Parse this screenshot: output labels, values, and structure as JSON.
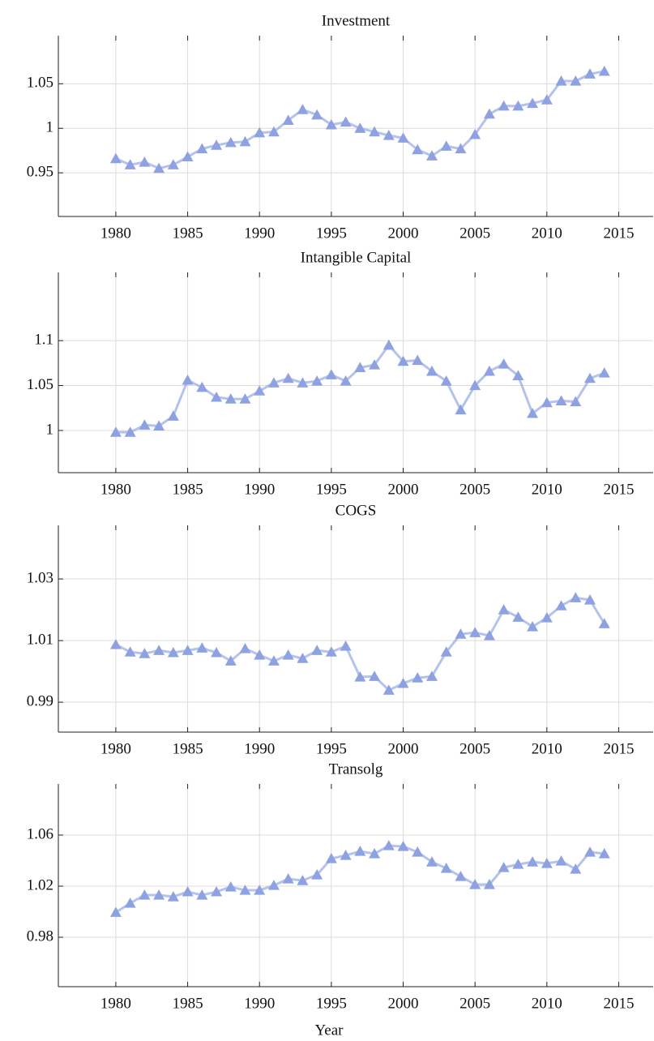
{
  "chart_data": [
    {
      "type": "line",
      "title": "Investment",
      "color": "#8ea2e2",
      "marker": "triangle",
      "grid": true,
      "x": [
        1980,
        1981,
        1982,
        1983,
        1984,
        1985,
        1986,
        1987,
        1988,
        1989,
        1990,
        1991,
        1992,
        1993,
        1994,
        1995,
        1996,
        1997,
        1998,
        1999,
        2000,
        2001,
        2002,
        2003,
        2004,
        2005,
        2006,
        2007,
        2008,
        2009,
        2010,
        2011,
        2012,
        2013,
        2014
      ],
      "values": [
        0.966,
        0.959,
        0.962,
        0.955,
        0.959,
        0.968,
        0.977,
        0.981,
        0.984,
        0.985,
        0.995,
        0.996,
        1.009,
        1.021,
        1.015,
        1.004,
        1.007,
        1.0,
        0.996,
        0.992,
        0.989,
        0.976,
        0.969,
        0.98,
        0.977,
        0.993,
        1.016,
        1.025,
        1.025,
        1.028,
        1.032,
        1.053,
        1.053,
        1.061,
        1.064
      ],
      "xlim": [
        1976,
        2017.4
      ],
      "xticks": [
        1980,
        1985,
        1990,
        1995,
        2000,
        2005,
        2010,
        2015
      ],
      "ylim": [
        0.901,
        1.104
      ],
      "yticks": [
        0.95,
        1,
        1.05
      ]
    },
    {
      "type": "line",
      "title": "Intangible Capital",
      "color": "#8ea2e2",
      "marker": "triangle",
      "grid": true,
      "x": [
        1980,
        1981,
        1982,
        1983,
        1984,
        1985,
        1986,
        1987,
        1988,
        1989,
        1990,
        1991,
        1992,
        1993,
        1994,
        1995,
        1996,
        1997,
        1998,
        1999,
        2000,
        2001,
        2002,
        2003,
        2004,
        2005,
        2006,
        2007,
        2008,
        2009,
        2010,
        2011,
        2012,
        2013,
        2014
      ],
      "values": [
        0.998,
        0.998,
        1.006,
        1.005,
        1.016,
        1.056,
        1.048,
        1.037,
        1.035,
        1.035,
        1.044,
        1.053,
        1.058,
        1.053,
        1.055,
        1.062,
        1.055,
        1.07,
        1.073,
        1.095,
        1.077,
        1.078,
        1.066,
        1.055,
        1.023,
        1.05,
        1.066,
        1.074,
        1.061,
        1.019,
        1.031,
        1.033,
        1.032,
        1.058,
        1.064
      ],
      "xlim": [
        1976,
        2017.4
      ],
      "xticks": [
        1980,
        1985,
        1990,
        1995,
        2000,
        2005,
        2010,
        2015
      ],
      "ylim": [
        0.953,
        1.176
      ],
      "yticks": [
        1,
        1.05,
        1.1
      ]
    },
    {
      "type": "line",
      "title": "COGS",
      "color": "#8ea2e2",
      "marker": "triangle",
      "grid": true,
      "x": [
        1980,
        1981,
        1982,
        1983,
        1984,
        1985,
        1986,
        1987,
        1988,
        1989,
        1990,
        1991,
        1992,
        1993,
        1994,
        1995,
        1996,
        1997,
        1998,
        1999,
        2000,
        2001,
        2002,
        2003,
        2004,
        2005,
        2006,
        2007,
        2008,
        2009,
        2010,
        2011,
        2012,
        2013,
        2014
      ],
      "values": [
        1.0087,
        1.0063,
        1.0058,
        1.0068,
        1.0061,
        1.0068,
        1.0076,
        1.0061,
        1.0034,
        1.0074,
        1.0053,
        1.0034,
        1.0053,
        1.0042,
        1.0068,
        1.0063,
        1.0082,
        0.9982,
        0.9984,
        0.9939,
        0.9961,
        0.9979,
        0.9984,
        1.0063,
        1.0121,
        1.0126,
        1.0116,
        1.02,
        1.0176,
        1.0145,
        1.0174,
        1.0213,
        1.0239,
        1.0232,
        1.0155
      ],
      "xlim": [
        1976,
        2017.4
      ],
      "xticks": [
        1980,
        1985,
        1990,
        1995,
        2000,
        2005,
        2010,
        2015
      ],
      "ylim": [
        0.9803,
        1.0474
      ],
      "yticks": [
        0.99,
        1.01,
        1.03
      ]
    },
    {
      "type": "line",
      "title": "Transolg",
      "xlabel": "Year",
      "color": "#8ea2e2",
      "marker": "triangle",
      "grid": true,
      "x": [
        1980,
        1981,
        1982,
        1983,
        1984,
        1985,
        1986,
        1987,
        1988,
        1989,
        1990,
        1991,
        1992,
        1993,
        1994,
        1995,
        1996,
        1997,
        1998,
        1999,
        2000,
        2001,
        2002,
        2003,
        2004,
        2005,
        2006,
        2007,
        2008,
        2009,
        2010,
        2011,
        2012,
        2013,
        2014
      ],
      "values": [
        0.9995,
        1.0067,
        1.013,
        1.013,
        1.0117,
        1.0156,
        1.013,
        1.0156,
        1.0194,
        1.0168,
        1.0168,
        1.0206,
        1.0257,
        1.0244,
        1.0289,
        1.0416,
        1.0441,
        1.0473,
        1.0454,
        1.0517,
        1.0511,
        1.0467,
        1.039,
        1.034,
        1.0276,
        1.0213,
        1.0213,
        1.0346,
        1.0371,
        1.039,
        1.0378,
        1.0397,
        1.0333,
        1.0467,
        1.0454
      ],
      "xlim": [
        1976,
        2017.4
      ],
      "xticks": [
        1980,
        1985,
        1990,
        1995,
        2000,
        2005,
        2010,
        2015
      ],
      "ylim": [
        0.9413,
        1.1
      ],
      "yticks": [
        0.98,
        1.02,
        1.06
      ]
    }
  ]
}
